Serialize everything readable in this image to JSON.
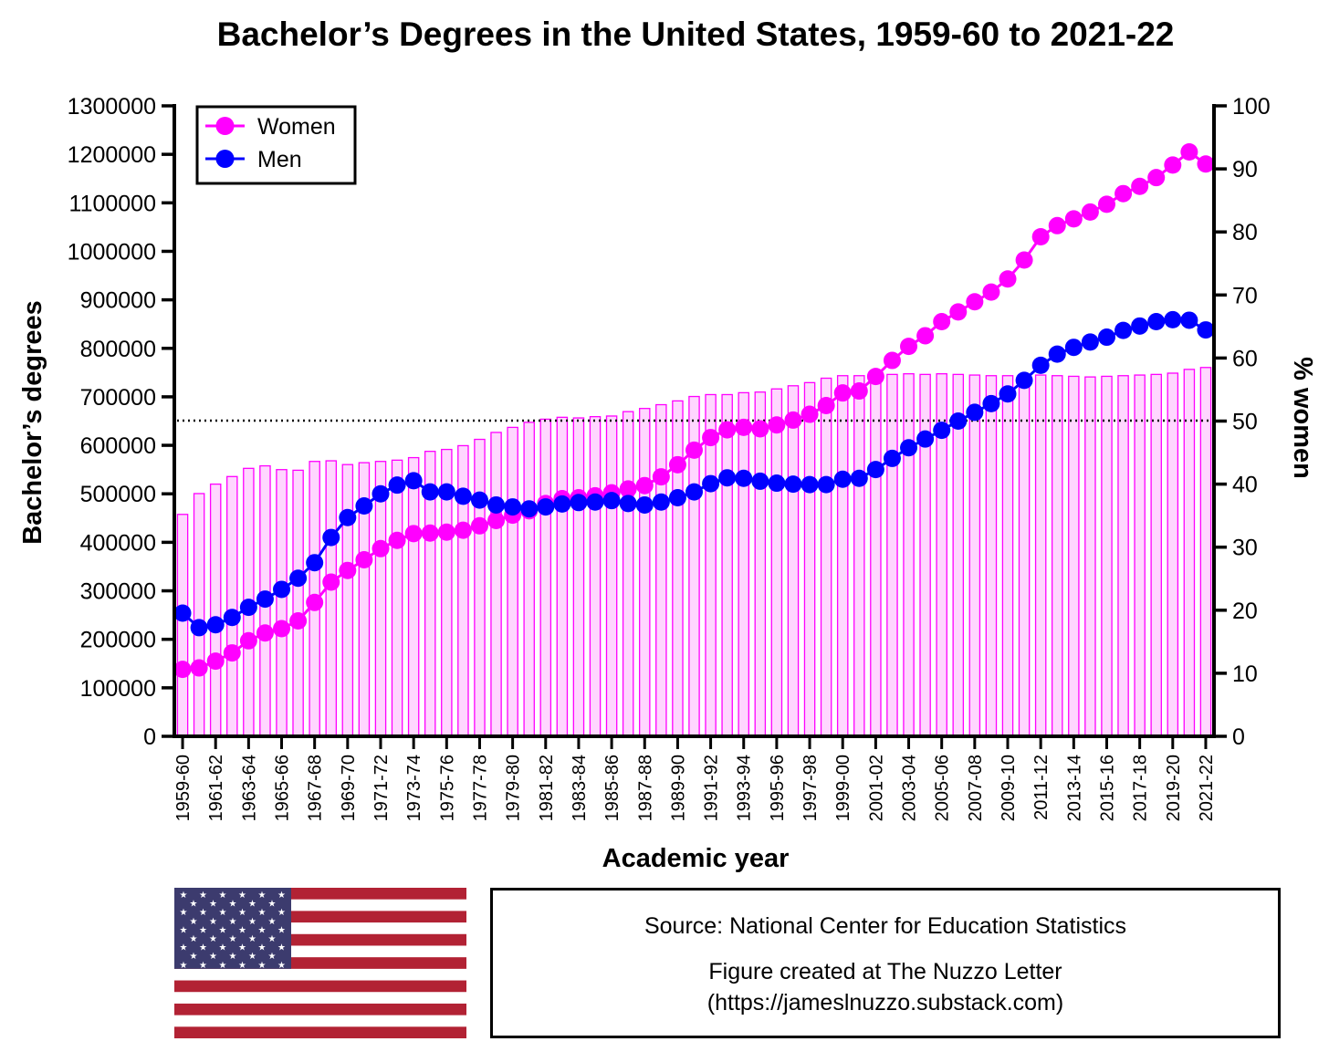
{
  "chart_data": {
    "type": "bar+line",
    "title": "Bachelor’s Degrees in the United States, 1959-60 to 2021-22",
    "xlabel": "Academic year",
    "ylabel": "Bachelor’s degrees",
    "y2label": "% women",
    "ylim": [
      0,
      1300000
    ],
    "y2lim": [
      0,
      100
    ],
    "yticks": [
      "0",
      "100000",
      "200000",
      "300000",
      "400000",
      "500000",
      "600000",
      "700000",
      "800000",
      "900000",
      "1000000",
      "1100000",
      "1200000",
      "1300000"
    ],
    "y2ticks": [
      "0",
      "10",
      "20",
      "30",
      "40",
      "50",
      "60",
      "70",
      "80",
      "90",
      "100"
    ],
    "reference_line": {
      "axis": "y2",
      "value": 50,
      "style": "dotted"
    },
    "categories": [
      "1959-60",
      "1960-61",
      "1961-62",
      "1962-63",
      "1963-64",
      "1964-65",
      "1965-66",
      "1966-67",
      "1967-68",
      "1968-69",
      "1969-70",
      "1970-71",
      "1971-72",
      "1972-73",
      "1973-74",
      "1974-75",
      "1975-76",
      "1976-77",
      "1977-78",
      "1978-79",
      "1979-80",
      "1980-81",
      "1981-82",
      "1982-83",
      "1983-84",
      "1984-85",
      "1985-86",
      "1986-87",
      "1987-88",
      "1988-89",
      "1989-90",
      "1990-91",
      "1991-92",
      "1992-93",
      "1993-94",
      "1994-95",
      "1995-96",
      "1996-97",
      "1997-98",
      "1998-99",
      "1999-00",
      "2000-01",
      "2001-02",
      "2002-03",
      "2003-04",
      "2004-05",
      "2005-06",
      "2006-07",
      "2007-08",
      "2008-09",
      "2009-10",
      "2010-11",
      "2011-12",
      "2012-13",
      "2013-14",
      "2014-15",
      "2015-16",
      "2016-17",
      "2017-18",
      "2018-19",
      "2019-20",
      "2020-21",
      "2021-22"
    ],
    "x_tick_labels": [
      "1959-60",
      "1961-62",
      "1963-64",
      "1965-66",
      "1967-68",
      "1969-70",
      "1971-72",
      "1973-74",
      "1975-76",
      "1977-78",
      "1979-80",
      "1981-82",
      "1983-84",
      "1985-86",
      "1987-88",
      "1989-90",
      "1991-92",
      "1993-94",
      "1995-96",
      "1997-98",
      "1999-00",
      "2001-02",
      "2003-04",
      "2005-06",
      "2007-08",
      "2009-10",
      "2011-12",
      "2013-14",
      "2015-16",
      "2017-18",
      "2019-20",
      "2021-22"
    ],
    "series": [
      {
        "name": "Women",
        "kind": "line",
        "axis": "y",
        "color": "#ff00ff",
        "values": [
          138000,
          141000,
          155000,
          172000,
          197000,
          213000,
          222000,
          238000,
          276000,
          318000,
          342000,
          364000,
          387000,
          404000,
          418000,
          419000,
          421000,
          425000,
          434000,
          445000,
          456000,
          465000,
          480000,
          490000,
          492000,
          496000,
          502000,
          510000,
          517000,
          535000,
          560000,
          590000,
          616000,
          632000,
          637000,
          634000,
          642000,
          652000,
          664000,
          682000,
          708000,
          712000,
          742000,
          775000,
          804000,
          826000,
          855000,
          875000,
          896000,
          916000,
          943000,
          982000,
          1030000,
          1053000,
          1067000,
          1081000,
          1097000,
          1119000,
          1134000,
          1152000,
          1178000,
          1205000,
          1180000
        ]
      },
      {
        "name": "Men",
        "kind": "line",
        "axis": "y",
        "color": "#0000ff",
        "values": [
          254000,
          224000,
          230000,
          245000,
          266000,
          283000,
          303000,
          326000,
          358000,
          410000,
          451000,
          475000,
          500000,
          518000,
          527000,
          504000,
          504000,
          495000,
          487000,
          477000,
          473000,
          469000,
          473000,
          479000,
          482000,
          483000,
          486000,
          480000,
          477000,
          483000,
          492000,
          504000,
          521000,
          533000,
          532000,
          526000,
          522000,
          520000,
          519000,
          519000,
          530000,
          532000,
          550000,
          573000,
          595000,
          613000,
          631000,
          650000,
          668000,
          686000,
          706000,
          734000,
          765000,
          788000,
          802000,
          813000,
          823000,
          837000,
          846000,
          855000,
          859000,
          858000,
          838000
        ]
      },
      {
        "name": "% women",
        "kind": "bar",
        "axis": "y2",
        "color": "#ff00ff",
        "values": [
          35.2,
          38.5,
          40.0,
          41.2,
          42.5,
          42.9,
          42.3,
          42.2,
          43.6,
          43.7,
          43.1,
          43.4,
          43.6,
          43.8,
          44.2,
          45.2,
          45.5,
          46.1,
          47.1,
          48.2,
          49.0,
          49.8,
          50.3,
          50.6,
          50.5,
          50.7,
          50.8,
          51.5,
          52.0,
          52.6,
          53.2,
          53.9,
          54.2,
          54.2,
          54.5,
          54.6,
          55.1,
          55.6,
          56.1,
          56.8,
          57.2,
          57.2,
          57.4,
          57.4,
          57.5,
          57.4,
          57.5,
          57.4,
          57.3,
          57.2,
          57.2,
          57.0,
          57.3,
          57.2,
          57.1,
          57.0,
          57.1,
          57.2,
          57.3,
          57.4,
          57.6,
          58.2,
          58.5
        ]
      }
    ],
    "legend": {
      "position": "top-left",
      "entries": [
        "Women",
        "Men"
      ]
    }
  },
  "source_box": {
    "line1": "Source: National Center for Education Statistics",
    "line2": "Figure created at The Nuzzo Letter",
    "line3": "(https://jameslnuzzo.substack.com)"
  },
  "flag": {
    "name": "flag-of-united-states",
    "colors": {
      "red": "#b22234",
      "white": "#ffffff",
      "blue": "#3c3b6e"
    }
  }
}
